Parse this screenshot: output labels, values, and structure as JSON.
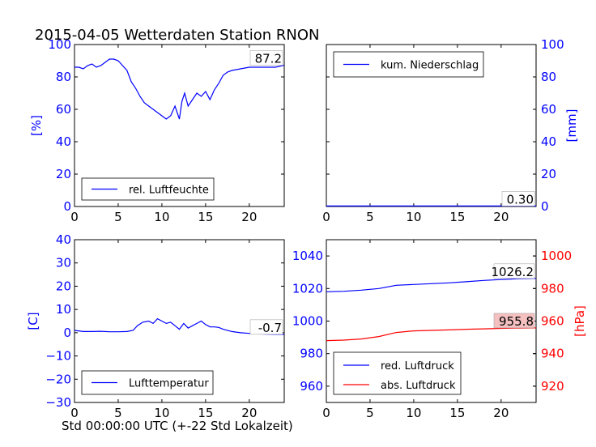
{
  "title": "2015-04-05 Wetterdaten Station RNON",
  "xlabel": "Std 00:00:00 UTC (+-22 Std Lokalzeit)",
  "colors": {
    "blue": "#0000ff",
    "red": "#ff0000"
  },
  "chart_data": [
    {
      "id": "humidity",
      "type": "line",
      "ylabel": "[%]",
      "xlim": [
        0,
        24
      ],
      "ylim": [
        0,
        100
      ],
      "xticks": [
        "0",
        "5",
        "10",
        "15",
        "20"
      ],
      "yticks": [
        "0",
        "20",
        "40",
        "60",
        "80",
        "100"
      ],
      "legend": "rel. Luftfeuchte",
      "legend_loc": "lower-left",
      "annotation": "87.2",
      "series": [
        {
          "name": "rel. Luftfeuchte",
          "color": "#0000ff",
          "x": [
            0,
            0.5,
            1,
            1.5,
            2,
            2.5,
            3,
            3.5,
            4,
            4.5,
            5,
            5.5,
            6,
            6.5,
            7,
            7.5,
            8,
            8.5,
            9,
            9.5,
            10,
            10.5,
            11,
            11.5,
            12,
            12.3,
            12.6,
            13,
            13.5,
            14,
            14.5,
            15,
            15.5,
            16,
            16.5,
            17,
            17.5,
            18,
            19,
            20,
            21,
            22,
            23,
            24
          ],
          "y": [
            86,
            86,
            85,
            87,
            88,
            86,
            87,
            89,
            91,
            91,
            90,
            87,
            84,
            77,
            73,
            68,
            64,
            62,
            60,
            58,
            56,
            54,
            56,
            62,
            54,
            65,
            70,
            62,
            66,
            70,
            68,
            71,
            66,
            72,
            76,
            81,
            83,
            84,
            85,
            86,
            86,
            86,
            86,
            87.2
          ]
        }
      ]
    },
    {
      "id": "precip",
      "type": "line",
      "ylabel": "[mm]",
      "xlim": [
        0,
        24
      ],
      "ylim": [
        0,
        100
      ],
      "xticks": [
        "0",
        "5",
        "10",
        "15",
        "20"
      ],
      "yticks": [
        "0",
        "20",
        "40",
        "60",
        "80",
        "100"
      ],
      "legend": "kum. Niederschlag",
      "legend_loc": "top-left",
      "annotation": "0.30",
      "series": [
        {
          "name": "kum. Niederschlag",
          "color": "#0000ff",
          "x": [
            0,
            24
          ],
          "y": [
            0.3,
            0.3
          ]
        }
      ]
    },
    {
      "id": "temperature",
      "type": "line",
      "ylabel": "[C]",
      "xlim": [
        0,
        24
      ],
      "ylim": [
        -30,
        40
      ],
      "xticks": [
        "0",
        "5",
        "10",
        "15",
        "20"
      ],
      "yticks": [
        "−30",
        "−20",
        "−10",
        "0",
        "10",
        "20",
        "30",
        "40"
      ],
      "legend": "Lufttemperatur",
      "legend_loc": "lower-left",
      "annotation": "-0.7",
      "series": [
        {
          "name": "Lufttemperatur",
          "color": "#0000ff",
          "x": [
            0,
            1,
            2,
            3,
            4,
            5,
            6,
            6.7,
            7.2,
            7.8,
            8.5,
            9,
            9.5,
            10,
            10.5,
            11,
            11.5,
            12,
            12.5,
            13,
            13.5,
            14,
            14.5,
            15,
            15.5,
            16,
            16.5,
            17,
            18,
            19,
            20,
            21,
            22,
            23,
            24
          ],
          "y": [
            1,
            0.5,
            0.5,
            0.6,
            0.4,
            0.4,
            0.5,
            1,
            3,
            4.5,
            5,
            4,
            6,
            5,
            4,
            4.5,
            3,
            1.5,
            4,
            2,
            3,
            4,
            5,
            3.5,
            2.5,
            2.5,
            2.3,
            1.5,
            0.5,
            0,
            -0.3,
            -0.5,
            -0.6,
            -0.7,
            -0.7
          ]
        }
      ]
    },
    {
      "id": "pressure",
      "type": "line",
      "xlim": [
        0,
        24
      ],
      "ylim_left": [
        950,
        1050
      ],
      "ylim_right": [
        910,
        1010
      ],
      "ylabel_right": "[hPa]",
      "xticks": [
        "0",
        "5",
        "10",
        "15",
        "20"
      ],
      "yticks_left": [
        "960",
        "980",
        "1000",
        "1020",
        "1040"
      ],
      "yticks_right": [
        "920",
        "940",
        "960",
        "980",
        "1000"
      ],
      "legend_loc": "lower-left",
      "series": [
        {
          "name": "red. Luftdruck",
          "color": "#0000ff",
          "axis": "left",
          "annotation": "1026.2",
          "x": [
            0,
            2,
            4,
            6,
            8,
            10,
            12,
            14,
            16,
            18,
            20,
            22,
            24
          ],
          "y": [
            1018,
            1018.3,
            1019,
            1020,
            1022,
            1022.5,
            1023,
            1023.5,
            1024.2,
            1025,
            1025.5,
            1026,
            1026.2
          ]
        },
        {
          "name": "abs. Luftdruck",
          "color": "#ff0000",
          "axis": "right",
          "annotation": "955.8",
          "x": [
            0,
            2,
            4,
            6,
            8,
            10,
            12,
            14,
            16,
            18,
            20,
            22,
            24
          ],
          "y": [
            948,
            948.3,
            949,
            950.5,
            953,
            954,
            954.3,
            954.6,
            955,
            955.2,
            955.5,
            955.7,
            955.8
          ]
        }
      ]
    }
  ]
}
